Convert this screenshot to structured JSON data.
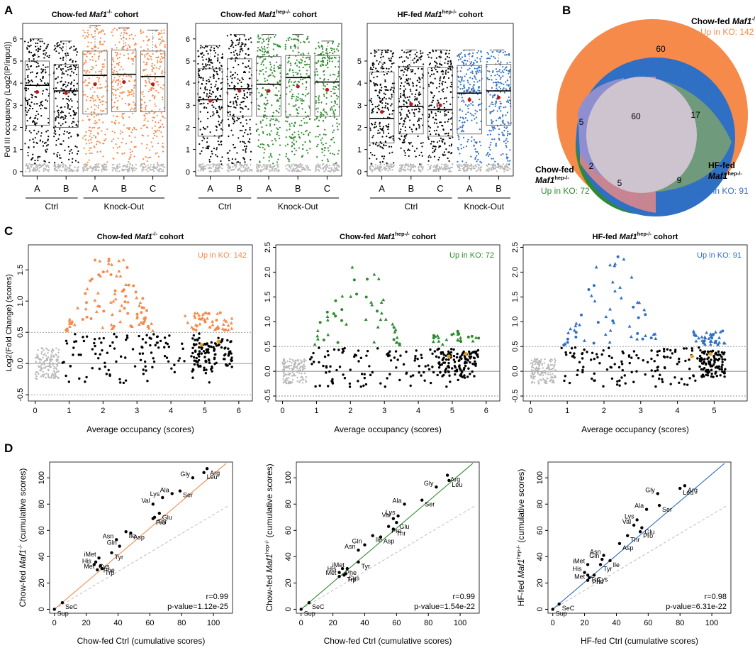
{
  "figure": {
    "panel_labels": [
      "A",
      "B",
      "C",
      "D"
    ]
  },
  "colors": {
    "ctrl": "#000000",
    "faded": "#b8b8b8",
    "chow_maf1": "#f58a4b",
    "chow_hep": "#2e8b2e",
    "hf_hep": "#2f6fc4",
    "mean_marker": "#c0141a",
    "highlight": "#e8a020",
    "venn_lilac": "#8f8fd0",
    "venn_grey": "#cdc4cf",
    "venn_sage": "#6f9a7c",
    "venn_pink": "#e28a8a"
  },
  "panelA": {
    "ylabel": "Pol III occupancy (Log2(IP/input))",
    "group_ctrl": "Ctrl",
    "group_ko": "Knock-Out",
    "plots": [
      {
        "title_pre": "Chow-fed ",
        "title_gene": "Maf1",
        "title_sup": "-/-",
        "title_post": " cohort",
        "ymax": 6,
        "series": "chow_maf1",
        "cats": [
          "A",
          "B",
          "A",
          "B",
          "C"
        ],
        "ctrl_n": 2,
        "q1": [
          2.1,
          2.0,
          2.6,
          2.7,
          2.7
        ],
        "med": [
          3.9,
          3.65,
          4.35,
          4.4,
          4.3
        ],
        "q3": [
          5.0,
          4.85,
          5.45,
          5.5,
          5.45
        ],
        "mean": [
          3.6,
          3.55,
          3.95,
          4.05,
          3.95
        ],
        "wmax": [
          6.0,
          5.9,
          6.6,
          6.5,
          6.4
        ]
      },
      {
        "title_pre": "Chow-fed ",
        "title_gene": "Maf1",
        "title_sup": "hep-/-",
        "title_post": " cohort",
        "ymax": 6,
        "series": "chow_hep",
        "cats": [
          "A",
          "B",
          "A",
          "B",
          "C"
        ],
        "ctrl_n": 2,
        "q1": [
          1.6,
          2.5,
          2.5,
          2.5,
          2.5
        ],
        "med": [
          3.25,
          3.75,
          3.95,
          4.25,
          4.05
        ],
        "q3": [
          4.65,
          5.1,
          5.2,
          5.25,
          5.25
        ],
        "mean": [
          3.2,
          3.65,
          3.65,
          3.85,
          3.7
        ],
        "wmax": [
          5.7,
          6.2,
          6.2,
          6.2,
          5.9
        ]
      },
      {
        "title_pre": "HF-fed ",
        "title_gene": "Maf1",
        "title_sup": "hep-/-",
        "title_post": " cohort",
        "ymax": 5,
        "series": "hf_hep",
        "cats": [
          "A",
          "B",
          "C",
          "A",
          "B"
        ],
        "ctrl_n": 3,
        "q1": [
          1.3,
          1.7,
          1.6,
          1.7,
          2.1
        ],
        "med": [
          2.4,
          2.95,
          2.8,
          3.55,
          3.65
        ],
        "q3": [
          4.5,
          4.75,
          4.7,
          4.8,
          4.85
        ],
        "mean": [
          2.7,
          3.05,
          3.0,
          3.25,
          3.35
        ],
        "wmax": [
          5.5,
          5.5,
          5.5,
          5.5,
          5.5
        ]
      }
    ]
  },
  "panelB": {
    "labels": {
      "chow_maf1_title_pre": "Chow-fed ",
      "chow_maf1_gene": "Maf1",
      "chow_maf1_sup": "-/-",
      "chow_maf1_up": "Up in KO: 142",
      "chow_hep_line1": "Chow-fed",
      "chow_hep_gene": "Maf1",
      "chow_hep_sup": "hep-/-",
      "chow_hep_up": "Up in KO: 72",
      "hf_hep_line1": "HF-fed",
      "hf_hep_gene": "Maf1",
      "hf_hep_sup": "hep-/-",
      "hf_hep_up": "Up in KO: 91"
    },
    "counts": {
      "maf1_only": "60",
      "maf1_hf": "17",
      "maf1_chow": "5",
      "all_three": "60",
      "chow_only": "2",
      "chow_hf": "5",
      "hf_only": "9"
    }
  },
  "chart_data": [
    {
      "type": "scatter",
      "panel": "C1",
      "title": "Chow-fed Maf1-/- cohort",
      "xlabel": "Average occupancy (scores)",
      "ylabel": "Log2(Fold Change) (scores)",
      "xlim": [
        -0.2,
        6.4
      ],
      "ylim": [
        -0.6,
        1.9
      ],
      "xticks": [
        0,
        1,
        2,
        3,
        4,
        5,
        6
      ],
      "yticks": [
        -0.5,
        0.0,
        0.5,
        1.0,
        1.5
      ],
      "threshold": 0.5,
      "annotation": "Up in KO: 142",
      "series": "chow_maf1",
      "seed": 11,
      "peak": 1.85
    },
    {
      "type": "scatter",
      "panel": "C2",
      "title": "Chow-fed Maf1hep-/- cohort",
      "xlabel": "Average occupancy (scores)",
      "ylabel": "",
      "xlim": [
        -0.2,
        6.4
      ],
      "ylim": [
        -0.6,
        2.55
      ],
      "xticks": [
        0,
        1,
        2,
        3,
        4,
        5,
        6
      ],
      "yticks": [
        -0.5,
        0.0,
        0.5,
        1.0,
        1.5,
        2.0,
        2.5
      ],
      "threshold": 0.5,
      "annotation": "Up in KO: 72",
      "series": "chow_hep",
      "seed": 23,
      "peak": 2.45
    },
    {
      "type": "scatter",
      "panel": "C3",
      "title": "HF-fed Maf1hep-/- cohort",
      "xlabel": "Average occupancy (scores)",
      "ylabel": "",
      "xlim": [
        -0.2,
        5.9
      ],
      "ylim": [
        -0.6,
        2.55
      ],
      "xticks": [
        0,
        1,
        2,
        3,
        4,
        5
      ],
      "yticks": [
        -0.5,
        0.0,
        0.5,
        1.0,
        1.5,
        2.0,
        2.5
      ],
      "threshold": 0.5,
      "annotation": "Up in KO: 91",
      "series": "hf_hep",
      "seed": 37,
      "peak": 2.4
    },
    {
      "type": "scatter",
      "panel": "D1",
      "xlabel": "Chow-fed Ctrl (cumulative scores)",
      "ylabel_pre": "Chow-fed ",
      "ylabel_gene": "Maf1",
      "ylabel_sup": "-/-",
      "ylabel_post": " (cumulative scores)",
      "xlim": [
        -3,
        112
      ],
      "ylim": [
        -3,
        112
      ],
      "ticks": [
        0,
        20,
        40,
        60,
        80,
        100
      ],
      "r": "r=0.99",
      "p": "p-value=1.12e-25",
      "series": "chow_maf1",
      "points": [
        [
          "Sup",
          0,
          0
        ],
        [
          "SeC",
          5,
          5
        ],
        [
          "Met",
          27,
          30
        ],
        [
          "Trp",
          30,
          31
        ],
        [
          "Phe",
          29,
          33
        ],
        [
          "His",
          25,
          34
        ],
        [
          "Cys",
          26,
          36
        ],
        [
          "iMet",
          28,
          39
        ],
        [
          "Tyr",
          36,
          43
        ],
        [
          "Gln",
          41,
          48
        ],
        [
          "Asn",
          39,
          53
        ],
        [
          "Ile",
          45,
          59
        ],
        [
          "Asp",
          48,
          58
        ],
        [
          "Pro",
          62,
          69
        ],
        [
          "Thr",
          63,
          70
        ],
        [
          "Glu",
          66,
          73
        ],
        [
          "Val",
          62,
          80
        ],
        [
          "Lys",
          68,
          85
        ],
        [
          "Ala",
          74,
          88
        ],
        [
          "Ser",
          79,
          90
        ],
        [
          "Gly",
          87,
          100
        ],
        [
          "Leu",
          94,
          104
        ],
        [
          "Arg",
          96,
          107
        ]
      ]
    },
    {
      "type": "scatter",
      "panel": "D2",
      "xlabel": "Chow-fed Ctrl (cumulative scores)",
      "ylabel_pre": "Chow-fed ",
      "ylabel_gene": "Maf1",
      "ylabel_sup": "hep-/-",
      "ylabel_post": " (cumulative scores)",
      "xlim": [
        -3,
        112
      ],
      "ylim": [
        -3,
        112
      ],
      "ticks": [
        0,
        20,
        40,
        60,
        80,
        100
      ],
      "r": "r=0.99",
      "p": "p-value=1.54e-22",
      "series": "chow_hep",
      "points": [
        [
          "Sup",
          0,
          0
        ],
        [
          "SeC",
          5,
          5
        ],
        [
          "Met",
          24,
          25
        ],
        [
          "Trp",
          27,
          26
        ],
        [
          "His",
          24,
          28
        ],
        [
          "Cys",
          28,
          27
        ],
        [
          "Phe",
          26,
          31
        ],
        [
          "iMet",
          29,
          31
        ],
        [
          "Tyr",
          36,
          36
        ],
        [
          "Asn",
          36,
          45
        ],
        [
          "Gln",
          40,
          49
        ],
        [
          "Ile",
          45,
          56
        ],
        [
          "Asp",
          50,
          55
        ],
        [
          "Pro",
          55,
          63
        ],
        [
          "Thr",
          58,
          61
        ],
        [
          "Glu",
          60,
          66
        ],
        [
          "Val",
          58,
          69
        ],
        [
          "Lys",
          61,
          71
        ],
        [
          "Ala",
          65,
          80
        ],
        [
          "Ser",
          76,
          83
        ],
        [
          "Gly",
          85,
          93
        ],
        [
          "Arg",
          92,
          102
        ],
        [
          "Leu",
          93,
          98
        ]
      ]
    },
    {
      "type": "scatter",
      "panel": "D3",
      "xlabel": "HF-fed Ctrl (cumulative scores)",
      "ylabel_pre": "HF-fed ",
      "ylabel_gene": "Maf1",
      "ylabel_sup": "hep-/-",
      "ylabel_post": " (cumulative scores)",
      "xlim": [
        -3,
        112
      ],
      "ylim": [
        -3,
        112
      ],
      "ticks": [
        0,
        20,
        40,
        60,
        80,
        100
      ],
      "r": "r=0.98",
      "p": "p-value=6.31e-22",
      "series": "hf_hep",
      "points": [
        [
          "Sup",
          0,
          0
        ],
        [
          "SeC",
          4,
          4
        ],
        [
          "Met",
          22,
          22
        ],
        [
          "Phe",
          23,
          24
        ],
        [
          "Trp",
          22,
          26
        ],
        [
          "Cys",
          26,
          26
        ],
        [
          "His",
          20,
          28
        ],
        [
          "iMet",
          22,
          34
        ],
        [
          "Tyr",
          30,
          34
        ],
        [
          "Gln",
          31,
          38
        ],
        [
          "Asn",
          32,
          41
        ],
        [
          "Ile",
          36,
          37
        ],
        [
          "Asp",
          42,
          50
        ],
        [
          "Thr",
          47,
          56
        ],
        [
          "Pro",
          55,
          59
        ],
        [
          "Glu",
          56,
          62
        ],
        [
          "Val",
          51,
          64
        ],
        [
          "Lys",
          53,
          68
        ],
        [
          "Ala",
          59,
          76
        ],
        [
          "Ser",
          67,
          79
        ],
        [
          "Gly",
          66,
          88
        ],
        [
          "Leu",
          80,
          92
        ],
        [
          "Arg",
          83,
          94
        ]
      ]
    }
  ]
}
